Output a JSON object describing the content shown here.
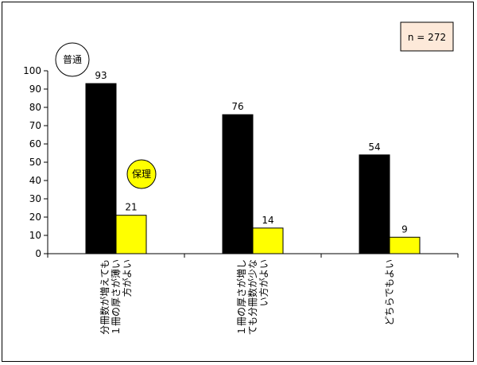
{
  "chart_data": {
    "type": "bar",
    "categories": [
      [
        "分冊数が増えても",
        "１冊の厚さが薄い",
        "方がよい"
      ],
      [
        "１冊の厚さが増し",
        "ても分冊数が少な",
        "い方がよい"
      ],
      [
        "どちらでもよい"
      ]
    ],
    "series": [
      {
        "name": "普通",
        "values": [
          93,
          76,
          54
        ],
        "color": "#000000"
      },
      {
        "name": "保理",
        "values": [
          21,
          14,
          9
        ],
        "color": "#ffff00"
      }
    ],
    "ylim": [
      0,
      100
    ],
    "yticks": [
      0,
      10,
      20,
      30,
      40,
      50,
      60,
      70,
      80,
      90,
      100
    ],
    "annotation": "n = 272",
    "annotation_bg": "#fde9d9",
    "grid": false
  }
}
